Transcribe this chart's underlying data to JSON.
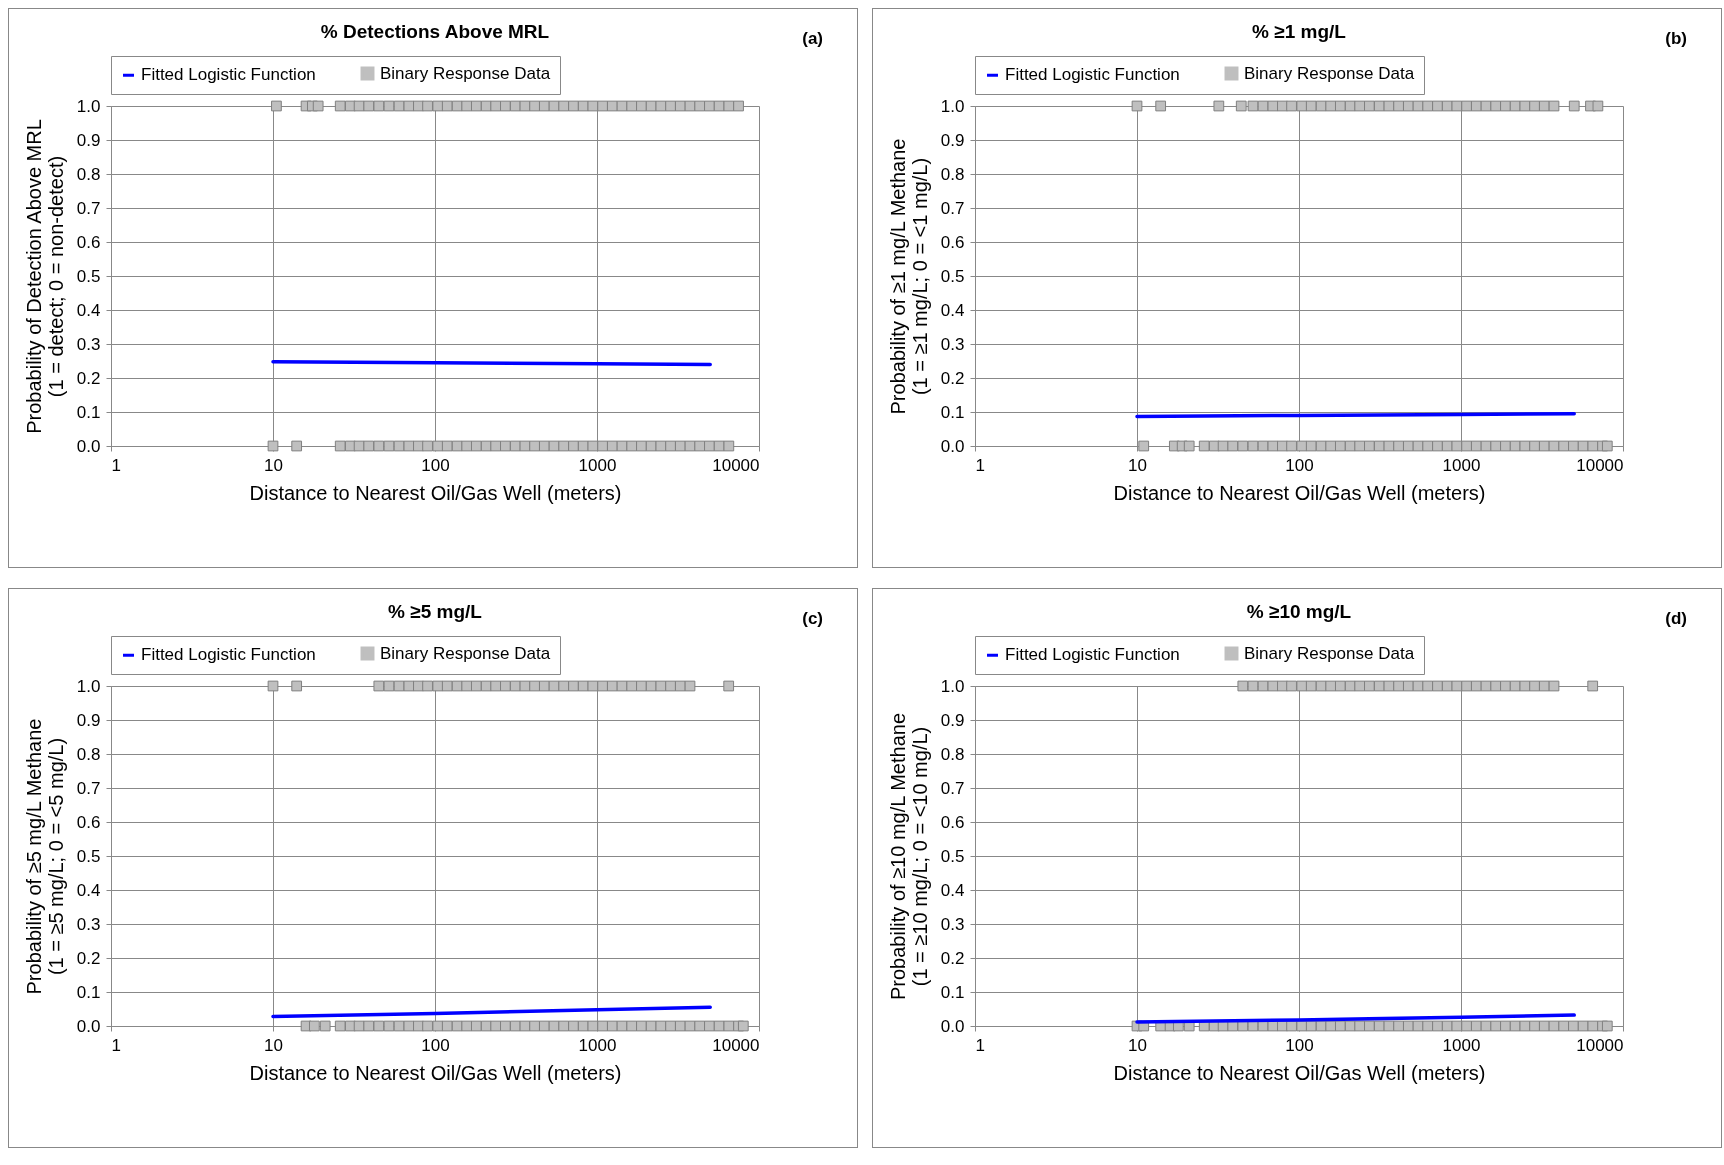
{
  "chart_data": [
    {
      "type": "scatter",
      "title": "% Detections Above MRL",
      "xlabel": "Distance to Nearest Oil/Gas Well (meters)",
      "ylabel": "Probability of Detection Above MRL\n(1 = detect; 0 = non-detect)",
      "annotations": [
        "(a)"
      ],
      "log": "x",
      "grid": true,
      "legend": "top",
      "xlim": [
        1,
        10000
      ],
      "xticks": [
        1,
        10,
        100,
        1000,
        10000
      ],
      "ylim": [
        0,
        1
      ],
      "yticks": [
        {
          "value": 0,
          "label": "0.0"
        },
        {
          "value": 0.1,
          "label": "0.1"
        },
        {
          "value": 0.2,
          "label": "0.2"
        },
        {
          "value": 0.3,
          "label": "0.3"
        },
        {
          "value": 0.4,
          "label": "0.4"
        },
        {
          "value": 0.5,
          "label": "0.5"
        },
        {
          "value": 0.6,
          "label": "0.6"
        },
        {
          "value": 0.7,
          "label": "0.7"
        },
        {
          "value": 0.8,
          "label": "0.8"
        },
        {
          "value": 0.9,
          "label": "0.9"
        },
        {
          "value": 1,
          "label": "1.0"
        }
      ],
      "series": [
        {
          "name": "Fitted Logistic Function",
          "type": "line",
          "color": "#0000ff",
          "line_style": "solid",
          "marker": "none",
          "x": [
            10,
            100,
            1000,
            5000
          ],
          "values": [
            0.248,
            0.245,
            0.242,
            0.24
          ]
        },
        {
          "name": "Binary Response Data",
          "color": "#bfbfbf",
          "marker": "square",
          "x": [
            10.5,
            16,
            17.5,
            19,
            26,
            30,
            34,
            39,
            45,
            52,
            60,
            69,
            79,
            90,
            104,
            119,
            137,
            157,
            180,
            207,
            237,
            272,
            313,
            359,
            412,
            473,
            543,
            623,
            716,
            822,
            943,
            1083,
            1243,
            1427,
            1638,
            1881,
            2159,
            2479,
            2846,
            3267,
            3750,
            4305,
            4943,
            5674,
            6514,
            7478,
            10,
            14,
            26,
            30,
            34,
            39,
            45,
            52,
            60,
            69,
            79,
            90,
            104,
            119,
            137,
            157,
            180,
            207,
            237,
            272,
            313,
            359,
            412,
            473,
            543,
            623,
            716,
            822,
            943,
            1083,
            1243,
            1427,
            1638,
            1881,
            2159,
            2479,
            2846,
            3267,
            3750,
            4305,
            4943,
            5674,
            6514
          ],
          "values": [
            1,
            1,
            1,
            1,
            1,
            1,
            1,
            1,
            1,
            1,
            1,
            1,
            1,
            1,
            1,
            1,
            1,
            1,
            1,
            1,
            1,
            1,
            1,
            1,
            1,
            1,
            1,
            1,
            1,
            1,
            1,
            1,
            1,
            1,
            1,
            1,
            1,
            1,
            1,
            1,
            1,
            1,
            1,
            1,
            1,
            1,
            0,
            0,
            0,
            0,
            0,
            0,
            0,
            0,
            0,
            0,
            0,
            0,
            0,
            0,
            0,
            0,
            0,
            0,
            0,
            0,
            0,
            0,
            0,
            0,
            0,
            0,
            0,
            0,
            0,
            0,
            0,
            0,
            0,
            0,
            0,
            0,
            0,
            0,
            0,
            0,
            0,
            0,
            0
          ]
        }
      ]
    },
    {
      "type": "scatter",
      "title": "% ≥1 mg/L",
      "xlabel": "Distance to Nearest Oil/Gas Well (meters)",
      "ylabel": "Probability of ≥1 mg/L Methane\n(1 = ≥1 mg/L; 0 = <1 mg/L)",
      "annotations": [
        "(b)"
      ],
      "log": "x",
      "grid": true,
      "legend": "top",
      "xlim": [
        1,
        10000
      ],
      "xticks": [
        1,
        10,
        100,
        1000,
        10000
      ],
      "ylim": [
        0,
        1
      ],
      "yticks": [
        {
          "value": 0,
          "label": "0.0"
        },
        {
          "value": 0.1,
          "label": "0.1"
        },
        {
          "value": 0.2,
          "label": "0.2"
        },
        {
          "value": 0.3,
          "label": "0.3"
        },
        {
          "value": 0.4,
          "label": "0.4"
        },
        {
          "value": 0.5,
          "label": "0.5"
        },
        {
          "value": 0.6,
          "label": "0.6"
        },
        {
          "value": 0.7,
          "label": "0.7"
        },
        {
          "value": 0.8,
          "label": "0.8"
        },
        {
          "value": 0.9,
          "label": "0.9"
        },
        {
          "value": 1,
          "label": "1.0"
        }
      ],
      "series": [
        {
          "name": "Fitted Logistic Function",
          "type": "line",
          "color": "#0000ff",
          "line_style": "solid",
          "marker": "none",
          "x": [
            10,
            100,
            1000,
            5000
          ],
          "values": [
            0.087,
            0.09,
            0.093,
            0.095
          ]
        },
        {
          "name": "Binary Response Data",
          "color": "#bfbfbf",
          "marker": "square",
          "x": [
            10,
            14,
            32,
            44,
            52,
            60,
            69,
            79,
            90,
            104,
            119,
            137,
            157,
            180,
            207,
            237,
            272,
            313,
            359,
            412,
            473,
            543,
            623,
            716,
            822,
            943,
            1083,
            1243,
            1427,
            1638,
            1881,
            2159,
            2479,
            2846,
            3267,
            3750,
            5000,
            6300,
            7000,
            11,
            17,
            19,
            21,
            26,
            30,
            34,
            39,
            45,
            52,
            60,
            69,
            79,
            90,
            104,
            119,
            137,
            157,
            180,
            207,
            237,
            272,
            313,
            359,
            412,
            473,
            543,
            623,
            716,
            822,
            943,
            1083,
            1243,
            1427,
            1638,
            1881,
            2159,
            2479,
            2846,
            3267,
            3750,
            4305,
            4943,
            5674,
            6514,
            7478,
            8000
          ],
          "values": [
            1,
            1,
            1,
            1,
            1,
            1,
            1,
            1,
            1,
            1,
            1,
            1,
            1,
            1,
            1,
            1,
            1,
            1,
            1,
            1,
            1,
            1,
            1,
            1,
            1,
            1,
            1,
            1,
            1,
            1,
            1,
            1,
            1,
            1,
            1,
            1,
            1,
            1,
            1,
            0,
            0,
            0,
            0,
            0,
            0,
            0,
            0,
            0,
            0,
            0,
            0,
            0,
            0,
            0,
            0,
            0,
            0,
            0,
            0,
            0,
            0,
            0,
            0,
            0,
            0,
            0,
            0,
            0,
            0,
            0,
            0,
            0,
            0,
            0,
            0,
            0,
            0,
            0,
            0,
            0,
            0,
            0,
            0,
            0,
            0,
            0
          ]
        }
      ]
    },
    {
      "type": "scatter",
      "title": "% ≥5 mg/L",
      "xlabel": "Distance to Nearest Oil/Gas Well (meters)",
      "ylabel": "Probability of ≥5 mg/L Methane\n(1 = ≥5 mg/L; 0 = <5 mg/L)",
      "annotations": [
        "(c)"
      ],
      "log": "x",
      "grid": true,
      "legend": "top",
      "xlim": [
        1,
        10000
      ],
      "xticks": [
        1,
        10,
        100,
        1000,
        10000
      ],
      "ylim": [
        0,
        1
      ],
      "yticks": [
        {
          "value": 0,
          "label": "0.0"
        },
        {
          "value": 0.1,
          "label": "0.1"
        },
        {
          "value": 0.2,
          "label": "0.2"
        },
        {
          "value": 0.3,
          "label": "0.3"
        },
        {
          "value": 0.4,
          "label": "0.4"
        },
        {
          "value": 0.5,
          "label": "0.5"
        },
        {
          "value": 0.6,
          "label": "0.6"
        },
        {
          "value": 0.7,
          "label": "0.7"
        },
        {
          "value": 0.8,
          "label": "0.8"
        },
        {
          "value": 0.9,
          "label": "0.9"
        },
        {
          "value": 1,
          "label": "1.0"
        }
      ],
      "series": [
        {
          "name": "Fitted Logistic Function",
          "type": "line",
          "color": "#0000ff",
          "line_style": "solid",
          "marker": "none",
          "x": [
            10,
            100,
            1000,
            5000
          ],
          "values": [
            0.028,
            0.037,
            0.048,
            0.055
          ]
        },
        {
          "name": "Binary Response Data",
          "color": "#bfbfbf",
          "marker": "square",
          "x": [
            10,
            14,
            45,
            52,
            60,
            69,
            79,
            90,
            104,
            119,
            137,
            157,
            180,
            207,
            237,
            272,
            313,
            359,
            412,
            473,
            543,
            623,
            716,
            822,
            943,
            1083,
            1243,
            1427,
            1638,
            1881,
            2159,
            2479,
            2846,
            3267,
            3750,
            6500,
            16,
            18,
            21,
            26,
            30,
            34,
            39,
            45,
            52,
            60,
            69,
            79,
            90,
            104,
            119,
            137,
            157,
            180,
            207,
            237,
            272,
            313,
            359,
            412,
            473,
            543,
            623,
            716,
            822,
            943,
            1083,
            1243,
            1427,
            1638,
            1881,
            2159,
            2479,
            2846,
            3267,
            3750,
            4305,
            4943,
            5674,
            6514,
            7478,
            8000
          ],
          "values": [
            1,
            1,
            1,
            1,
            1,
            1,
            1,
            1,
            1,
            1,
            1,
            1,
            1,
            1,
            1,
            1,
            1,
            1,
            1,
            1,
            1,
            1,
            1,
            1,
            1,
            1,
            1,
            1,
            1,
            1,
            1,
            1,
            1,
            1,
            1,
            1,
            0,
            0,
            0,
            0,
            0,
            0,
            0,
            0,
            0,
            0,
            0,
            0,
            0,
            0,
            0,
            0,
            0,
            0,
            0,
            0,
            0,
            0,
            0,
            0,
            0,
            0,
            0,
            0,
            0,
            0,
            0,
            0,
            0,
            0,
            0,
            0,
            0,
            0,
            0,
            0,
            0,
            0,
            0,
            0,
            0,
            0
          ]
        }
      ]
    },
    {
      "type": "scatter",
      "title": "% ≥10 mg/L",
      "xlabel": "Distance to Nearest Oil/Gas Well (meters)",
      "ylabel": "Probability of ≥10 mg/L Methane\n(1 = ≥10 mg/L; 0 = <10 mg/L)",
      "annotations": [
        "(d)"
      ],
      "log": "x",
      "grid": true,
      "legend": "top",
      "xlim": [
        1,
        10000
      ],
      "xticks": [
        1,
        10,
        100,
        1000,
        10000
      ],
      "ylim": [
        0,
        1
      ],
      "yticks": [
        {
          "value": 0,
          "label": "0.0"
        },
        {
          "value": 0.1,
          "label": "0.1"
        },
        {
          "value": 0.2,
          "label": "0.2"
        },
        {
          "value": 0.3,
          "label": "0.3"
        },
        {
          "value": 0.4,
          "label": "0.4"
        },
        {
          "value": 0.5,
          "label": "0.5"
        },
        {
          "value": 0.6,
          "label": "0.6"
        },
        {
          "value": 0.7,
          "label": "0.7"
        },
        {
          "value": 0.8,
          "label": "0.8"
        },
        {
          "value": 0.9,
          "label": "0.9"
        },
        {
          "value": 1,
          "label": "1.0"
        }
      ],
      "series": [
        {
          "name": "Fitted Logistic Function",
          "type": "line",
          "color": "#0000ff",
          "line_style": "solid",
          "marker": "none",
          "x": [
            10,
            100,
            1000,
            5000
          ],
          "values": [
            0.012,
            0.018,
            0.026,
            0.032
          ]
        },
        {
          "name": "Binary Response Data",
          "color": "#bfbfbf",
          "marker": "square",
          "x": [
            45,
            52,
            60,
            69,
            79,
            90,
            104,
            119,
            137,
            157,
            180,
            207,
            237,
            272,
            313,
            359,
            412,
            473,
            543,
            623,
            716,
            822,
            943,
            1083,
            1243,
            1427,
            1638,
            1881,
            2159,
            2479,
            2846,
            3267,
            3750,
            6500,
            10,
            11,
            14,
            16,
            18,
            21,
            26,
            30,
            34,
            39,
            45,
            52,
            60,
            69,
            79,
            90,
            104,
            119,
            137,
            157,
            180,
            207,
            237,
            272,
            313,
            359,
            412,
            473,
            543,
            623,
            716,
            822,
            943,
            1083,
            1243,
            1427,
            1638,
            1881,
            2159,
            2479,
            2846,
            3267,
            3750,
            4305,
            4943,
            5674,
            6514,
            7478,
            8000
          ],
          "values": [
            1,
            1,
            1,
            1,
            1,
            1,
            1,
            1,
            1,
            1,
            1,
            1,
            1,
            1,
            1,
            1,
            1,
            1,
            1,
            1,
            1,
            1,
            1,
            1,
            1,
            1,
            1,
            1,
            1,
            1,
            1,
            1,
            1,
            1,
            0,
            0,
            0,
            0,
            0,
            0,
            0,
            0,
            0,
            0,
            0,
            0,
            0,
            0,
            0,
            0,
            0,
            0,
            0,
            0,
            0,
            0,
            0,
            0,
            0,
            0,
            0,
            0,
            0,
            0,
            0,
            0,
            0,
            0,
            0,
            0,
            0,
            0,
            0,
            0,
            0,
            0,
            0,
            0,
            0,
            0,
            0,
            0,
            0
          ]
        }
      ]
    }
  ]
}
